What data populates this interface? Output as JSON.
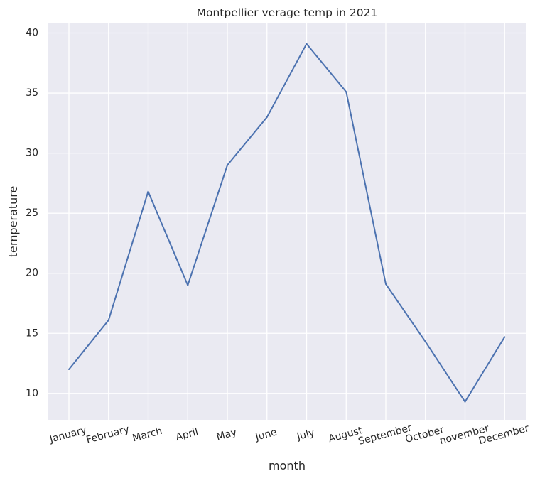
{
  "chart_data": {
    "type": "line",
    "title": "Montpellier verage temp in 2021",
    "xlabel": "month",
    "ylabel": "temperature",
    "categories": [
      "January",
      "February",
      "March",
      "April",
      "May",
      "June",
      "July",
      "August",
      "September",
      "October",
      "november",
      "December"
    ],
    "series": [
      {
        "values": [
          12.0,
          16.1,
          26.8,
          19.0,
          29.0,
          33.0,
          39.1,
          35.1,
          19.1,
          14.3,
          9.3,
          14.7
        ]
      }
    ],
    "ylim": [
      7.8,
      40.8
    ],
    "yticks": [
      10,
      15,
      20,
      25,
      30,
      35,
      40
    ],
    "grid": true,
    "colors": {
      "line": "#4c72b0",
      "plot_background": "#eaeaf2",
      "grid": "#ffffff"
    }
  }
}
